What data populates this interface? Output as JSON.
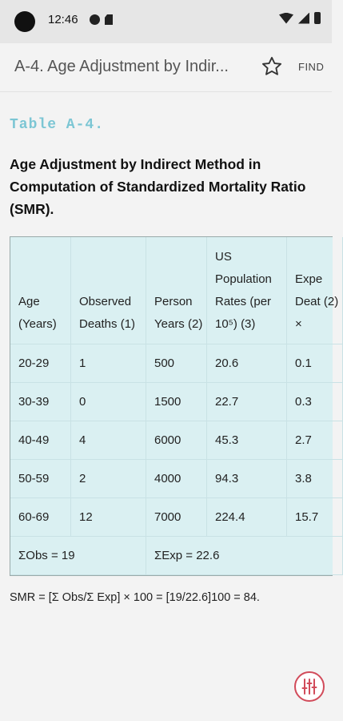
{
  "status_bar": {
    "time": "12:46"
  },
  "app_bar": {
    "title": "A-4. Age Adjustment by Indir...",
    "find_label": "FIND"
  },
  "content": {
    "table_label": "Table A-4.",
    "caption": "Age Adjustment by Indirect Method in Computation of Standardized Mortality Ratio (SMR).",
    "table": {
      "headers": [
        "Age (Years)",
        "Observed Deaths (1)",
        "Person Years (2)",
        "US Population Rates (per 10⁵) (3)",
        "Expe Deat (2) ×"
      ],
      "rows": [
        [
          "20-29",
          "1",
          "500",
          "20.6",
          "0.1"
        ],
        [
          "30-39",
          "0",
          "1500",
          "22.7",
          "0.3"
        ],
        [
          "40-49",
          "4",
          "6000",
          "45.3",
          "2.7"
        ],
        [
          "50-59",
          "2",
          "4000",
          "94.3",
          "3.8"
        ],
        [
          "60-69",
          "12",
          "7000",
          "224.4",
          "15.7"
        ]
      ],
      "summary": {
        "obs": "ΣObs = 19",
        "exp": "ΣExp = 22.6"
      }
    },
    "formula": "SMR = [Σ Obs/Σ Exp] × 100 = [19/22.6]100 = 84."
  },
  "icons": {
    "star": "star-outline-icon",
    "fab": "tuning-sliders-icon"
  },
  "colors": {
    "table_bg": "#daf0f2",
    "label": "#7cc6d4",
    "fab_accent": "#d14b5a"
  }
}
